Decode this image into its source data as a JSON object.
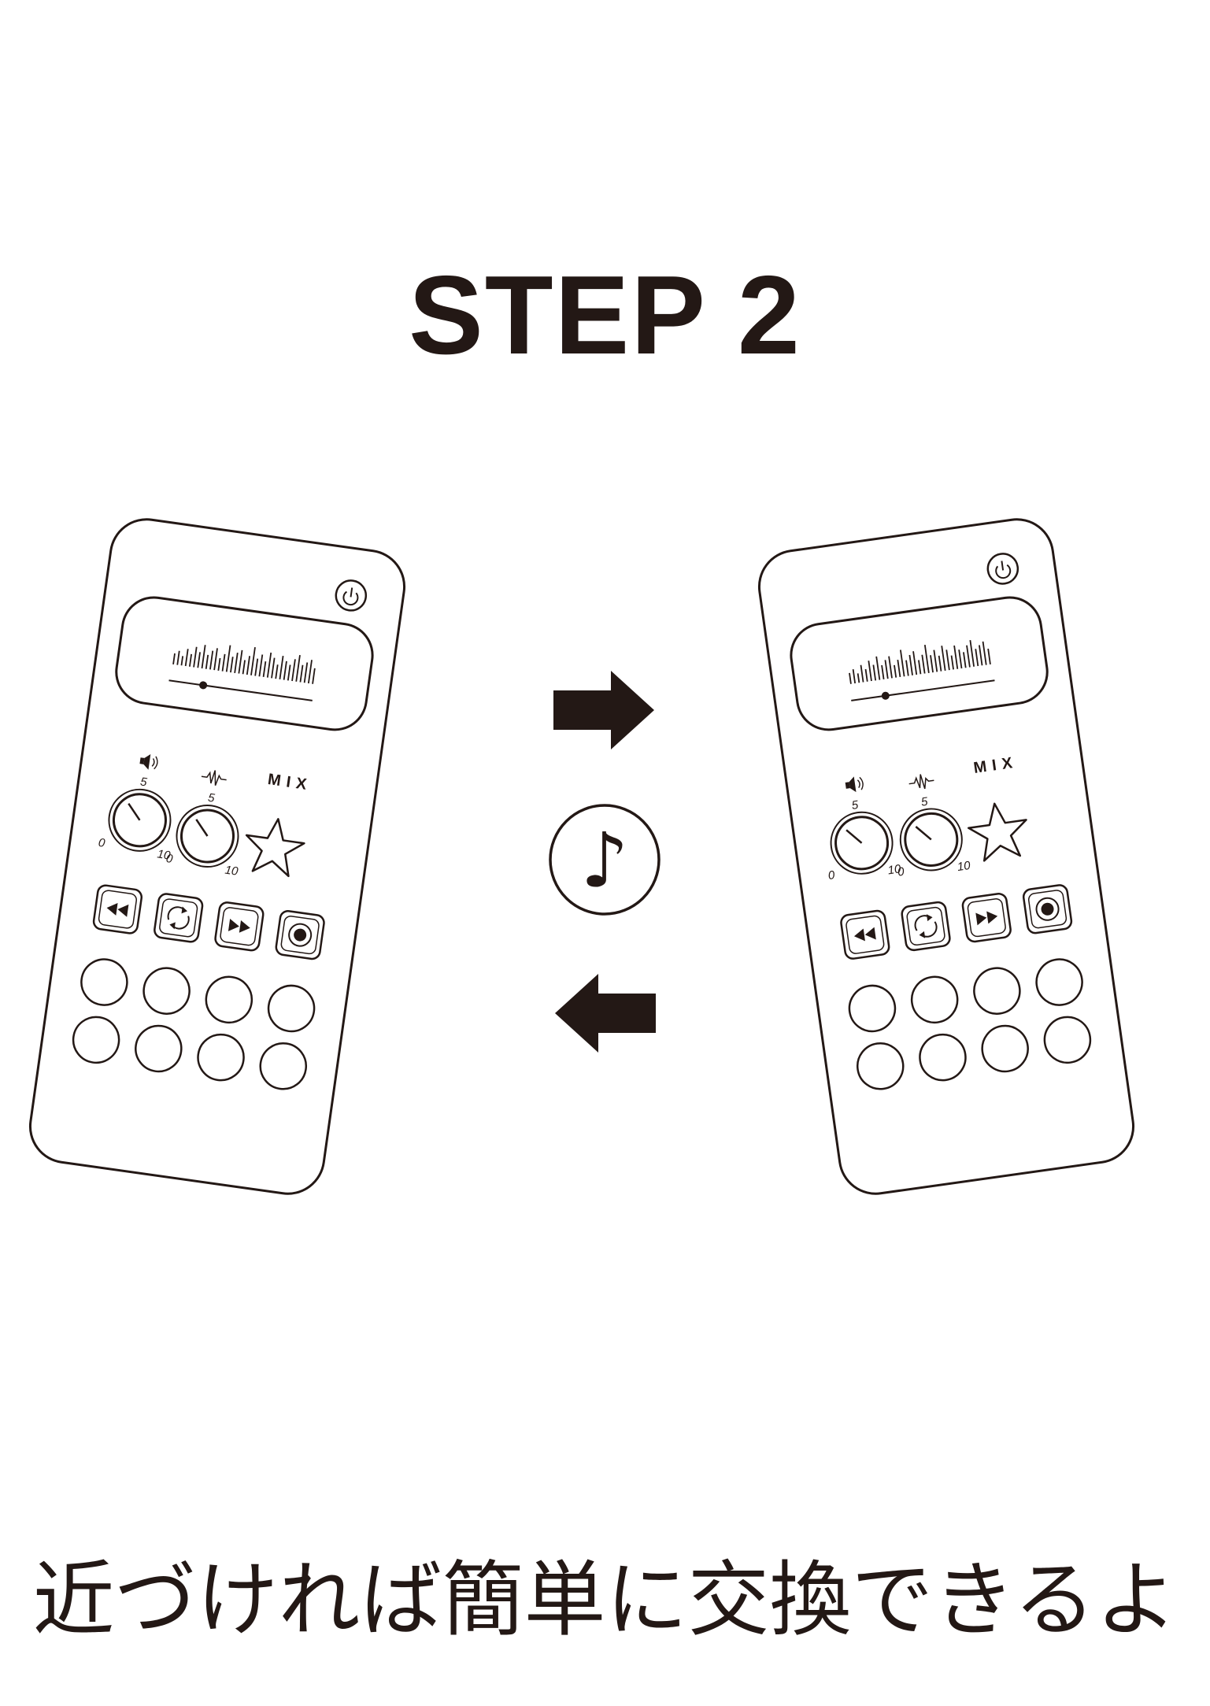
{
  "title": "STEP 2",
  "caption": "近づければ簡単に交換できるよ",
  "device": {
    "volume_knob": {
      "tick_min": "0",
      "tick_mid": "5",
      "tick_max": "10"
    },
    "effect_knob": {
      "tick_min": "0",
      "tick_mid": "5",
      "tick_max": "10"
    },
    "mix_label": "MIX"
  },
  "exchange": {
    "center_symbol": "♪",
    "arrows": [
      "right",
      "left"
    ]
  },
  "colors": {
    "ink": "#231815",
    "background": "#ffffff"
  }
}
